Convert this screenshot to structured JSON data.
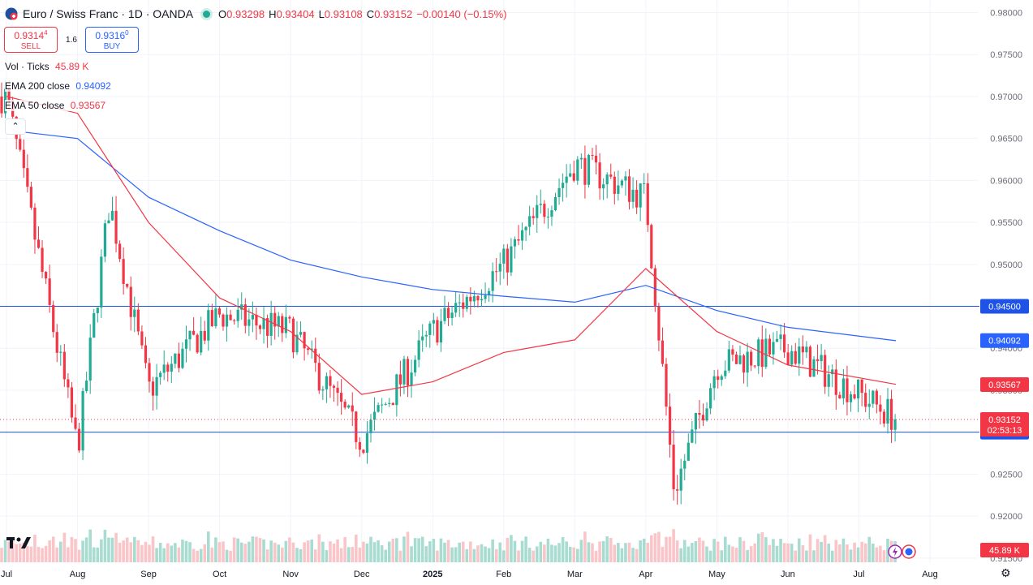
{
  "header": {
    "symbol_title": "Euro / Swiss Franc · 1D · OANDA",
    "open_label": "O",
    "open": "0.93298",
    "high_label": "H",
    "high": "0.93404",
    "low_label": "L",
    "low": "0.93108",
    "close_label": "C",
    "close": "0.93152",
    "change": "−0.00140 (−0.15%)"
  },
  "trade": {
    "sell_price": "0.9314",
    "sell_price_sup": "4",
    "sell_label": "SELL",
    "spread": "1.6",
    "buy_price": "0.9316",
    "buy_price_sup": "0",
    "buy_label": "BUY"
  },
  "legend": {
    "vol_label": "Vol · Ticks",
    "vol_value": "45.89 K",
    "ema200_label": "EMA 200 close",
    "ema200_value": "0.94092",
    "ema50_label": "EMA 50 close",
    "ema50_value": "0.93567"
  },
  "collapse_icon": "chevron-up-icon",
  "colors": {
    "up": "#22ab94",
    "down": "#f23645",
    "ema200": "#2962ff",
    "ema50": "#f23645",
    "hline": "#1e53e5",
    "vol_up": "#a8dcd1",
    "vol_down": "#fac5c8"
  },
  "chart_data": {
    "type": "candlestick",
    "title": "Euro / Swiss Franc · 1D · OANDA",
    "y_axis": {
      "min": 0.9145,
      "max": 0.9815,
      "ticks": [
        "0.98000",
        "0.97500",
        "0.97000",
        "0.96500",
        "0.96000",
        "0.95500",
        "0.95000",
        "0.94500",
        "0.94000",
        "0.93500",
        "0.93000",
        "0.92500",
        "0.92000",
        "0.91500"
      ]
    },
    "x_axis": {
      "labels": [
        "Jul",
        "Aug",
        "Sep",
        "Oct",
        "Nov",
        "Dec",
        "2025",
        "Feb",
        "Mar",
        "Apr",
        "May",
        "Jun",
        "Jul",
        "Aug"
      ],
      "bold": [
        "2025"
      ]
    },
    "horizontal_lines": [
      {
        "value": 0.945,
        "label": "0.94500"
      },
      {
        "value": 0.93,
        "label": "0.93000"
      }
    ],
    "price_line": {
      "value": 0.93152,
      "label": "0.93152",
      "countdown": "02:53:13"
    },
    "ema200_tag": {
      "value": 0.94092,
      "label": "0.94092"
    },
    "ema50_tag": {
      "value": 0.93567,
      "label": "0.93567"
    },
    "volume_tag": "45.89 K",
    "key_points": [
      {
        "date": "Jul",
        "close": 0.97
      },
      {
        "date": "Aug",
        "close": 0.928
      },
      {
        "date": "Aug mid",
        "close": 0.9575
      },
      {
        "date": "Sep",
        "close": 0.935
      },
      {
        "date": "Oct",
        "close": 0.944
      },
      {
        "date": "Nov",
        "close": 0.942
      },
      {
        "date": "Dec",
        "close": 0.929
      },
      {
        "date": "2025",
        "close": 0.942
      },
      {
        "date": "Feb",
        "close": 0.95
      },
      {
        "date": "Mar",
        "close": 0.962
      },
      {
        "date": "Apr",
        "close": 0.958
      },
      {
        "date": "Apr mid",
        "close": 0.923
      },
      {
        "date": "May",
        "close": 0.938
      },
      {
        "date": "Jun",
        "close": 0.94
      },
      {
        "date": "Jul",
        "close": 0.9315
      }
    ],
    "ema200": [
      {
        "date": "Jul",
        "value": 0.966
      },
      {
        "date": "Aug",
        "value": 0.965
      },
      {
        "date": "Sep",
        "value": 0.958
      },
      {
        "date": "Oct",
        "value": 0.954
      },
      {
        "date": "Nov",
        "value": 0.9505
      },
      {
        "date": "Dec",
        "value": 0.9485
      },
      {
        "date": "2025",
        "value": 0.947
      },
      {
        "date": "Feb",
        "value": 0.9462
      },
      {
        "date": "Mar",
        "value": 0.9455
      },
      {
        "date": "Apr",
        "value": 0.9475
      },
      {
        "date": "May",
        "value": 0.9445
      },
      {
        "date": "Jun",
        "value": 0.9425
      },
      {
        "date": "Jul",
        "value": 0.9409
      }
    ],
    "ema50": [
      {
        "date": "Jul",
        "value": 0.97
      },
      {
        "date": "Aug",
        "value": 0.968
      },
      {
        "date": "Sep",
        "value": 0.955
      },
      {
        "date": "Oct",
        "value": 0.946
      },
      {
        "date": "Nov",
        "value": 0.942
      },
      {
        "date": "Dec",
        "value": 0.9345
      },
      {
        "date": "2025",
        "value": 0.936
      },
      {
        "date": "Feb",
        "value": 0.9395
      },
      {
        "date": "Mar",
        "value": 0.941
      },
      {
        "date": "Apr",
        "value": 0.9495
      },
      {
        "date": "May",
        "value": 0.942
      },
      {
        "date": "Jun",
        "value": 0.938
      },
      {
        "date": "Jul",
        "value": 0.9357
      }
    ]
  }
}
